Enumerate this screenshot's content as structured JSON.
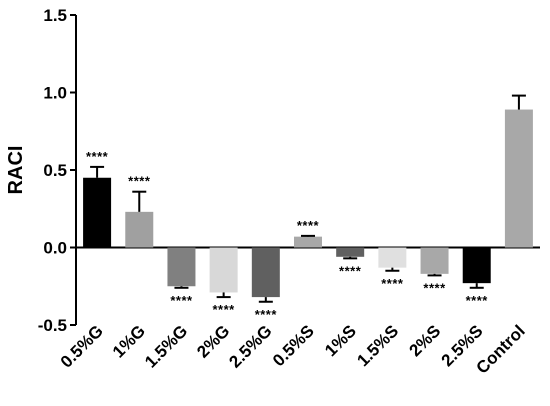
{
  "chart_data": {
    "type": "bar",
    "title": "",
    "xlabel": "",
    "ylabel": "RACI",
    "ylim": [
      -0.5,
      1.5
    ],
    "yticks": [
      "-0.5",
      "0.0",
      "0.5",
      "1.0",
      "1.5"
    ],
    "ytick_values": [
      -0.5,
      0.0,
      0.5,
      1.0,
      1.5
    ],
    "grid": false,
    "categories": [
      "0.5%G",
      "1%G",
      "1.5%G",
      "2%G",
      "2.5%G",
      "0.5%S",
      "1%S",
      "1.5%S",
      "2%S",
      "2.5%S",
      "Control"
    ],
    "values": [
      0.45,
      0.23,
      -0.25,
      -0.29,
      -0.32,
      0.07,
      -0.06,
      -0.13,
      -0.17,
      -0.23,
      0.89
    ],
    "errors": [
      0.07,
      0.13,
      0.01,
      0.03,
      0.03,
      0.005,
      0.01,
      0.02,
      0.01,
      0.03,
      0.09
    ],
    "colors": [
      "#000000",
      "#a0a0a0",
      "#808080",
      "#d8d8d8",
      "#606060",
      "#a8a8a8",
      "#606060",
      "#e0e0e0",
      "#a8a8a8",
      "#000000",
      "#a8a8a8"
    ],
    "annotations": [
      "****",
      "****",
      "****",
      "****",
      "****",
      "****",
      "****",
      "****",
      "****",
      "****",
      ""
    ]
  }
}
